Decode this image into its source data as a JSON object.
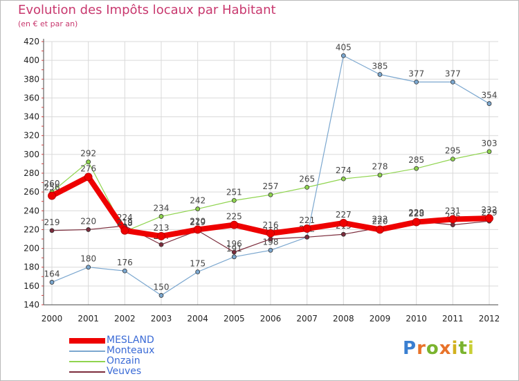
{
  "title": "Evolution des Impôts locaux par Habitant",
  "subtitle": "(en € et par an)",
  "logo": [
    "P",
    "r",
    "o",
    "x",
    "i",
    "t",
    "i"
  ],
  "colors": {
    "title": "#c8386e",
    "grid": "#d9d9d9",
    "legend_text": "#3b6bd6",
    "logo": [
      "#3a7fd1",
      "#e8732a",
      "#7ab32e",
      "#e8732a",
      "#d2b11e",
      "#7ab32e",
      "#c9cf35"
    ]
  },
  "chart_data": {
    "type": "line",
    "title": "Evolution des Impôts locaux par Habitant",
    "subtitle": "(en € et par an)",
    "xlabel": "",
    "ylabel": "",
    "ylim": [
      140,
      420
    ],
    "yticks": [
      140,
      160,
      180,
      200,
      220,
      240,
      260,
      280,
      300,
      320,
      340,
      360,
      380,
      400,
      420
    ],
    "categories": [
      "2000",
      "2001",
      "2002",
      "2003",
      "2004",
      "2005",
      "2006",
      "2007",
      "2008",
      "2009",
      "2010",
      "2011",
      "2012"
    ],
    "grid": true,
    "legend": "bottom-left",
    "series": [
      {
        "name": "Onzain",
        "color": "#8fd44e",
        "width": 1.2,
        "values": [
          260,
          292,
          218,
          234,
          242,
          251,
          257,
          265,
          274,
          278,
          285,
          295,
          303
        ],
        "labels": [
          "260",
          "292",
          "218",
          "234",
          "242",
          "251",
          "257",
          "265",
          "274",
          "278",
          "285",
          "295",
          "303"
        ]
      },
      {
        "name": "Monteaux",
        "color": "#7ba7cf",
        "width": 1.2,
        "values": [
          164,
          180,
          176,
          150,
          175,
          191,
          198,
          212,
          405,
          385,
          377,
          377,
          354
        ],
        "labels": [
          "164",
          "180",
          "176",
          "150",
          "175",
          "191",
          "198",
          "212",
          "405",
          "385",
          "377",
          "377",
          "354"
        ]
      },
      {
        "name": "Veuves",
        "color": "#7b2c3c",
        "width": 1.2,
        "values": [
          219,
          220,
          224,
          204,
          219,
          196,
          210,
          212,
          215,
          222,
          229,
          225,
          229
        ],
        "labels": [
          "219",
          "220",
          "224",
          "204",
          "219",
          "196",
          "210",
          "212",
          "215",
          "222",
          "229",
          "225",
          "229"
        ]
      },
      {
        "name": "MESLAND",
        "color": "#ee0000",
        "width": 8,
        "values": [
          256,
          276,
          219,
          213,
          220,
          225,
          216,
          221,
          227,
          220,
          228,
          231,
          232
        ],
        "labels": [
          "256",
          "276",
          "219",
          "213",
          "220",
          "225",
          "216",
          "221",
          "227",
          "220",
          "228",
          "231",
          "232"
        ]
      }
    ]
  },
  "legend": [
    {
      "name": "MESLAND",
      "color": "#ee0000",
      "thickness": 8
    },
    {
      "name": "Monteaux",
      "color": "#7ba7cf",
      "thickness": 2
    },
    {
      "name": "Onzain",
      "color": "#8fd44e",
      "thickness": 2
    },
    {
      "name": "Veuves",
      "color": "#7b2c3c",
      "thickness": 2
    }
  ]
}
